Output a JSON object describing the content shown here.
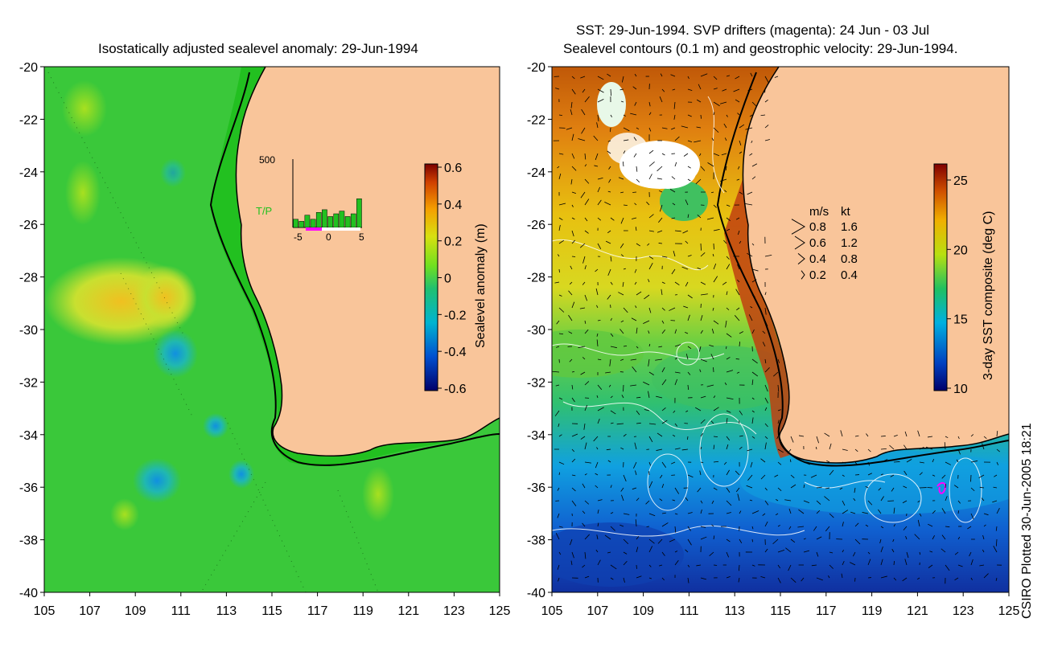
{
  "left_panel": {
    "title": "Isostatically adjusted sealevel anomaly: 29-Jun-1994",
    "y_ticks": [
      "-20",
      "-22",
      "-24",
      "-26",
      "-28",
      "-30",
      "-32",
      "-34",
      "-36",
      "-38",
      "-40"
    ],
    "x_ticks": [
      "105",
      "107",
      "109",
      "111",
      "113",
      "115",
      "117",
      "119",
      "121",
      "123",
      "125"
    ],
    "colorbar": {
      "label": "Sealevel anomaly (m)",
      "ticks": [
        "0.6",
        "0.4",
        "0.2",
        "0",
        "-0.2",
        "-0.4",
        "-0.6"
      ]
    },
    "inset": {
      "label": "T/P",
      "y_max_label": "500",
      "x_ticks": [
        "-5",
        "0",
        "5"
      ],
      "bar_values": [
        60,
        45,
        90,
        60,
        110,
        130,
        80,
        100,
        120,
        80,
        100,
        210
      ]
    }
  },
  "right_panel": {
    "title_line1": "SST: 29-Jun-1994. SVP drifters (magenta): 24 Jun - 03 Jul",
    "title_line2": "Sealevel contours (0.1 m) and geostrophic velocity: 29-Jun-1994.",
    "y_ticks": [
      "-20",
      "-22",
      "-24",
      "-26",
      "-28",
      "-30",
      "-32",
      "-34",
      "-36",
      "-38",
      "-40"
    ],
    "x_ticks": [
      "105",
      "107",
      "109",
      "111",
      "113",
      "115",
      "117",
      "119",
      "121",
      "123",
      "125"
    ],
    "colorbar": {
      "label": "3-day SST composite (deg C)",
      "ticks": [
        "25",
        "20",
        "15",
        "10"
      ]
    },
    "velocity_legend": {
      "header_ms": "m/s",
      "header_kt": "kt",
      "rows": [
        {
          "ms": "0.8",
          "kt": "1.6"
        },
        {
          "ms": "0.6",
          "kt": "1.2"
        },
        {
          "ms": "0.4",
          "kt": "0.8"
        },
        {
          "ms": "0.2",
          "kt": "0.4"
        }
      ]
    }
  },
  "credit": "CSIRO Plotted 30-Jun-2005 18:21",
  "colors": {
    "land": "#f9c59a",
    "coast": "#000000",
    "ocean_green": "#2ed12e",
    "ocean_light": "#8fe02a",
    "warm": "#d46a00",
    "cool": "#1a5ad8"
  }
}
